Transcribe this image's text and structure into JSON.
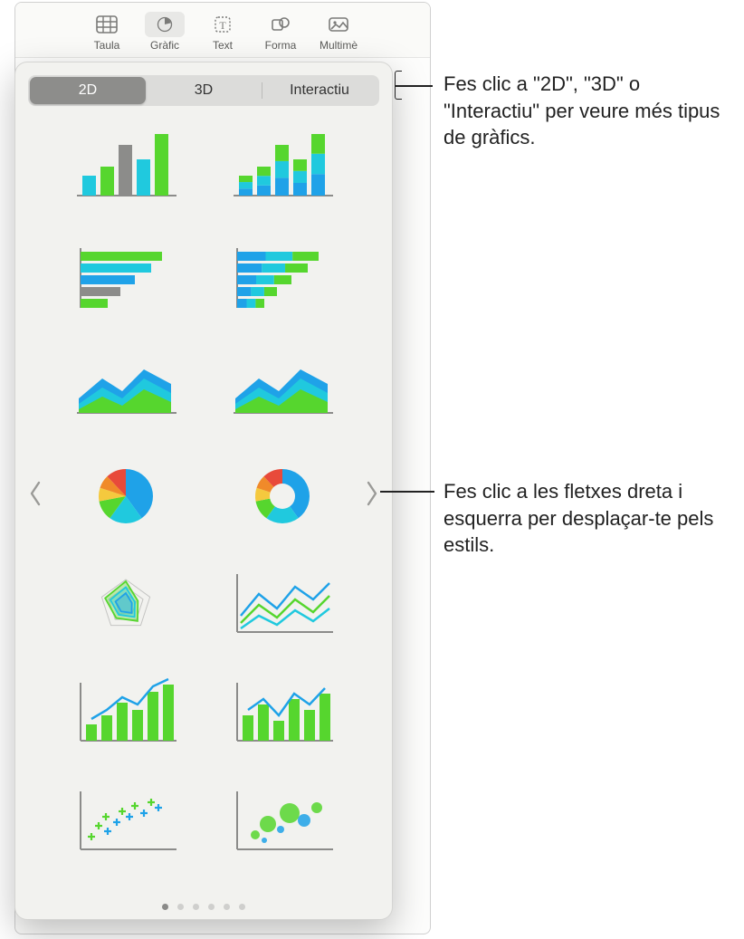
{
  "toolbar": {
    "items": [
      {
        "label": "Taula"
      },
      {
        "label": "Gràfic"
      },
      {
        "label": "Text"
      },
      {
        "label": "Forma"
      },
      {
        "label": "Multimè"
      }
    ],
    "active_index": 1
  },
  "segmented": {
    "options": [
      "2D",
      "3D",
      "Interactiu"
    ],
    "active_index": 0
  },
  "palette": {
    "green": "#56d62e",
    "cyan": "#20c9de",
    "blue": "#1fa2e8",
    "yellow": "#f5c93e",
    "orange": "#f08a2a",
    "red": "#e84a3a",
    "gray": "#8c8c8a",
    "bg": "#f2f2ef"
  },
  "chart_thumbs": [
    {
      "name": "bar-vertical",
      "type": "bar-v",
      "heights": [
        22,
        32,
        56,
        40,
        68
      ],
      "colors": [
        "cyan",
        "green",
        "gray",
        "cyan",
        "green"
      ]
    },
    {
      "name": "bar-vertical-stacked",
      "type": "bar-v-stacked",
      "heights": [
        22,
        32,
        56,
        40,
        68
      ],
      "seg_colors": [
        "blue",
        "cyan",
        "green"
      ]
    },
    {
      "name": "bar-horizontal",
      "type": "bar-h",
      "widths": [
        90,
        78,
        60,
        44,
        30
      ],
      "colors": [
        "green",
        "cyan",
        "blue",
        "gray",
        "green"
      ]
    },
    {
      "name": "bar-horizontal-stacked",
      "type": "bar-h-stacked",
      "widths": [
        90,
        78,
        60,
        44,
        30
      ],
      "seg_colors": [
        "blue",
        "cyan",
        "green"
      ]
    },
    {
      "name": "area-stacked",
      "type": "area",
      "colors": [
        "green",
        "cyan",
        "blue"
      ]
    },
    {
      "name": "area-stacked-alt",
      "type": "area",
      "colors": [
        "green",
        "cyan",
        "blue"
      ]
    },
    {
      "name": "pie",
      "type": "pie",
      "slices": [
        40,
        20,
        12,
        8,
        8,
        12
      ],
      "colors": [
        "blue",
        "cyan",
        "green",
        "yellow",
        "orange",
        "red"
      ]
    },
    {
      "name": "donut",
      "type": "donut",
      "slices": [
        40,
        20,
        12,
        8,
        8,
        12
      ],
      "colors": [
        "blue",
        "cyan",
        "green",
        "yellow",
        "orange",
        "red"
      ]
    },
    {
      "name": "radar",
      "type": "radar",
      "colors": [
        "green",
        "cyan",
        "blue"
      ]
    },
    {
      "name": "line-multi",
      "type": "line-multi",
      "colors": [
        "blue",
        "green",
        "cyan"
      ]
    },
    {
      "name": "combo-bar-line",
      "type": "combo",
      "bar_color": "green",
      "line_color": "blue",
      "heights": [
        18,
        28,
        42,
        34,
        54,
        62
      ]
    },
    {
      "name": "combo-bar-line-2",
      "type": "combo",
      "bar_color": "green",
      "line_color": "blue",
      "heights": [
        28,
        40,
        22,
        46,
        34,
        52
      ]
    },
    {
      "name": "scatter-cross",
      "type": "scatter",
      "marker": "cross",
      "colors": [
        "green",
        "blue"
      ]
    },
    {
      "name": "bubble",
      "type": "bubble",
      "colors": [
        "green",
        "blue"
      ]
    }
  ],
  "page_dots": {
    "count": 6,
    "active": 0
  },
  "callouts": {
    "tabs": "Fes clic a \"2D\", \"3D\" o \"Interactiu\" per veure més tipus de gràfics.",
    "arrows": "Fes clic a les fletxes dreta i esquerra per desplaçar-te pels estils."
  }
}
